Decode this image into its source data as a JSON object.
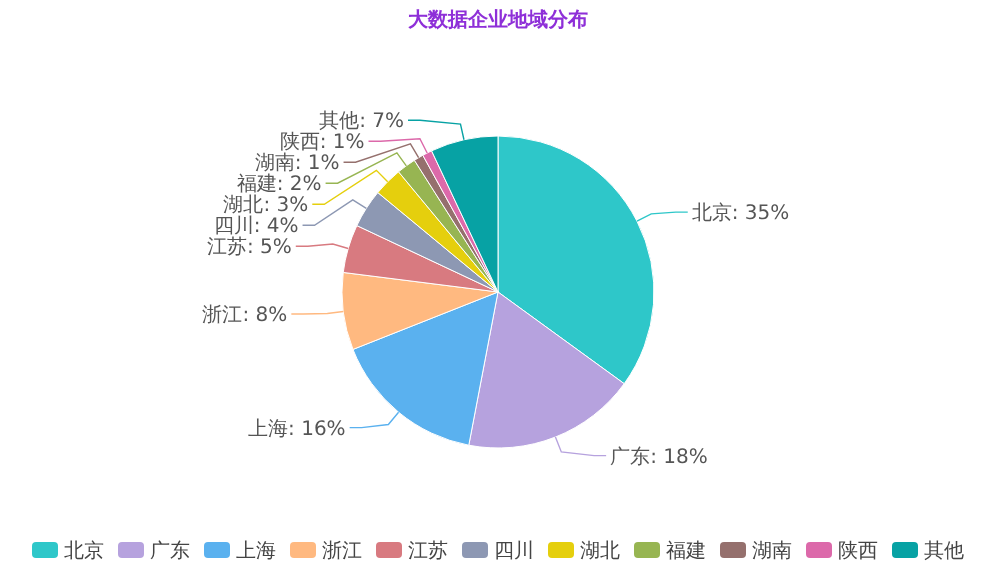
{
  "chart_data": {
    "type": "pie",
    "title": "大数据企业地域分布",
    "categories": [
      "北京",
      "广东",
      "上海",
      "浙江",
      "江苏",
      "四川",
      "湖北",
      "福建",
      "湖南",
      "陕西",
      "其他"
    ],
    "values": [
      35,
      18,
      16,
      8,
      5,
      4,
      3,
      2,
      1,
      1,
      7
    ],
    "value_labels": [
      "北京: 35%",
      "广东: 18%",
      "上海: 16%",
      "浙江: 8%",
      "江苏: 5%",
      "四川: 4%",
      "湖北: 3%",
      "福建: 2%",
      "湖南: 1%",
      "陕西: 1%",
      "其他: 7%"
    ],
    "colors": [
      "#2ec7c9",
      "#b6a2de",
      "#5ab1ef",
      "#ffb980",
      "#d87a80",
      "#8d98b3",
      "#e5cf0d",
      "#97b552",
      "#95706d",
      "#dc69aa",
      "#07a2a4"
    ],
    "legend": "bottom"
  }
}
